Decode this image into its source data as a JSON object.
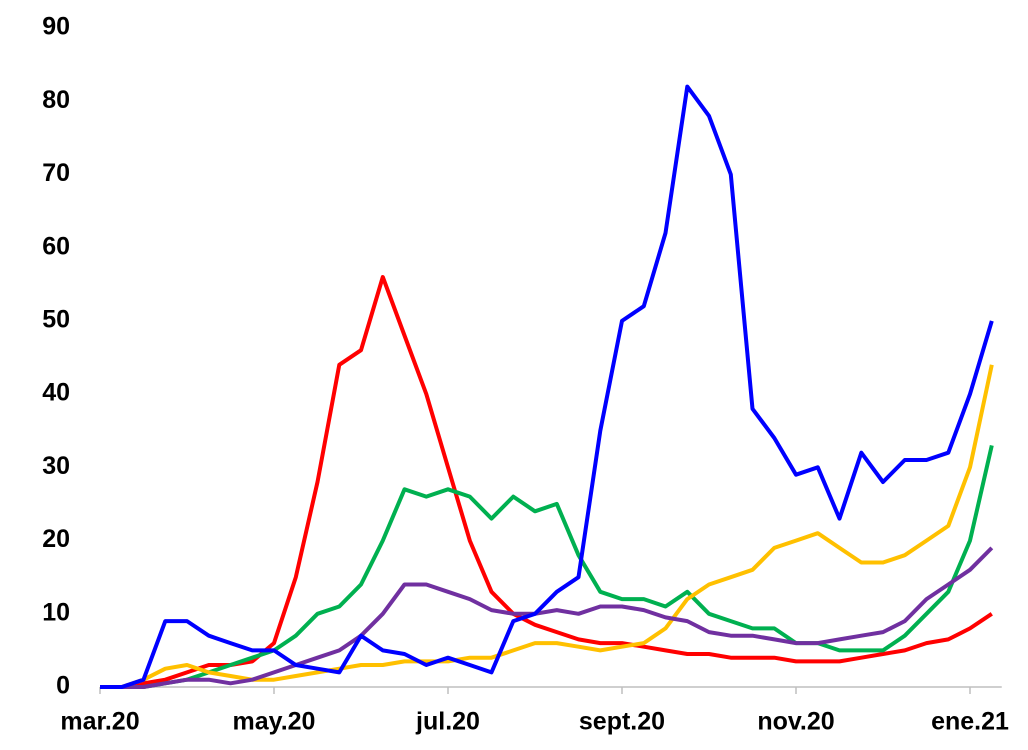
{
  "chart_data": {
    "type": "line",
    "categories": [
      "mar.20",
      null,
      null,
      null,
      null,
      null,
      null,
      null,
      "may.20",
      null,
      null,
      null,
      null,
      null,
      null,
      null,
      "jul.20",
      null,
      null,
      null,
      null,
      null,
      null,
      null,
      "sept.20",
      null,
      null,
      null,
      null,
      null,
      null,
      null,
      "nov.20",
      null,
      null,
      null,
      null,
      null,
      null,
      null,
      "ene.21",
      null
    ],
    "series": [
      {
        "color": "#ff0000",
        "values": [
          0,
          0,
          0.5,
          1,
          2,
          3,
          3,
          3.5,
          6,
          15,
          28,
          44,
          46,
          56,
          48,
          40,
          30,
          20,
          13,
          10,
          8.5,
          7.5,
          6.5,
          6,
          6,
          5.5,
          5,
          4.5,
          4.5,
          4,
          4,
          4,
          3.5,
          3.5,
          3.5,
          4,
          4.5,
          5,
          6,
          6.5,
          8,
          10
        ]
      },
      {
        "color": "#00b050",
        "values": [
          0,
          0,
          0,
          0.5,
          1,
          2,
          3,
          4,
          5,
          7,
          10,
          11,
          14,
          20,
          27,
          26,
          27,
          26,
          23,
          26,
          24,
          25,
          18,
          13,
          12,
          12,
          11,
          13,
          10,
          9,
          8,
          8,
          6,
          6,
          5,
          5,
          5,
          7,
          10,
          13,
          20,
          33
        ]
      },
      {
        "color": "#ffc000",
        "values": [
          0,
          0,
          1,
          2.5,
          3,
          2,
          1.5,
          1,
          1,
          1.5,
          2,
          2.5,
          3,
          3,
          3.5,
          3.5,
          3.5,
          4,
          4,
          5,
          6,
          6,
          5.5,
          5,
          5.5,
          6,
          8,
          12,
          14,
          15,
          16,
          19,
          20,
          21,
          19,
          17,
          17,
          18,
          20,
          22,
          30,
          44
        ]
      },
      {
        "color": "#7030a0",
        "values": [
          0,
          0,
          0,
          0.5,
          1,
          1,
          0.5,
          1,
          2,
          3,
          4,
          5,
          7,
          10,
          14,
          14,
          13,
          12,
          10.5,
          10,
          10,
          10.5,
          10,
          11,
          11,
          10.5,
          9.5,
          9,
          7.5,
          7,
          7,
          6.5,
          6,
          6,
          6.5,
          7,
          7.5,
          9,
          12,
          14,
          16,
          19
        ]
      },
      {
        "color": "#0000ff",
        "values": [
          0,
          0,
          1,
          9,
          9,
          7,
          6,
          5,
          5,
          3,
          2.5,
          2,
          7,
          5,
          4.5,
          3,
          4,
          3,
          2,
          9,
          10,
          13,
          15,
          35,
          50,
          52,
          62,
          82,
          78,
          70,
          38,
          34,
          29,
          30,
          23,
          32,
          28,
          31,
          31,
          32,
          40,
          50
        ]
      }
    ],
    "ylim": [
      0,
      90
    ],
    "yticks": [
      0,
      10,
      20,
      30,
      40,
      50,
      60,
      70,
      80,
      90
    ],
    "grid": false
  }
}
